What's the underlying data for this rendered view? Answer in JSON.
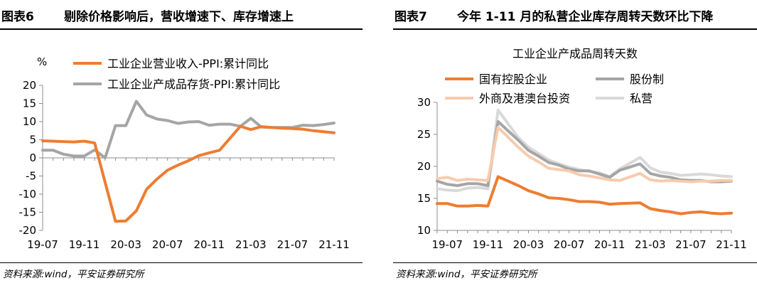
{
  "left_panel": {
    "figure_no": "图表6",
    "title": "剔除价格影响后，营收增速下、库存增速上",
    "source": "资料来源:wind，平安证券研究所"
  },
  "right_panel": {
    "figure_no": "图表7",
    "title": "今年 1-11 月的私营企业库存周转天数环比下降",
    "source": "资料来源:wind，平安证券研究所"
  },
  "chart_data": [
    {
      "type": "line",
      "title": "",
      "ylabel": "%",
      "ylim": [
        -20,
        20
      ],
      "yticks": [
        20,
        15,
        10,
        5,
        0,
        -5,
        -10,
        -15,
        -20
      ],
      "xtick_labels": [
        "19-07",
        "19-11",
        "20-03",
        "20-07",
        "20-11",
        "21-03",
        "21-07",
        "21-11"
      ],
      "x": [
        "19-07",
        "19-08",
        "19-09",
        "19-10",
        "19-11",
        "19-12",
        "20-01",
        "20-02",
        "20-03",
        "20-04",
        "20-05",
        "20-06",
        "20-07",
        "20-08",
        "20-09",
        "20-10",
        "20-11",
        "20-12",
        "21-01",
        "21-02",
        "21-03",
        "21-04",
        "21-05",
        "21-06",
        "21-07",
        "21-08",
        "21-09",
        "21-10",
        "21-11"
      ],
      "legend_position": "top",
      "series": [
        {
          "name": "工业企业营业收入-PPI:累计同比",
          "color": "#ed7d31",
          "values": [
            4.7,
            null,
            4.5,
            4.4,
            4.6,
            4.1,
            null,
            -17.5,
            -17.4,
            -14.6,
            -8.6,
            -5.8,
            -3.4,
            -2.0,
            -0.8,
            0.6,
            1.4,
            2.1,
            null,
            8.7,
            7.8,
            8.6,
            8.4,
            8.2,
            8.1,
            7.9,
            7.5,
            7.2,
            6.9
          ]
        },
        {
          "name": "工业企业产成品存货-PPI:累计同比",
          "color": "#a5a5a5",
          "values": [
            2.1,
            2.1,
            1.0,
            0.5,
            0.5,
            2.2,
            0.0,
            8.9,
            8.9,
            15.6,
            11.8,
            10.7,
            10.3,
            9.5,
            9.9,
            10.0,
            9.0,
            9.3,
            9.3,
            8.7,
            10.9,
            8.5,
            8.4,
            8.4,
            8.4,
            9.0,
            8.9,
            9.2,
            9.6
          ]
        }
      ]
    },
    {
      "type": "line",
      "title": "工业企业产成品周转天数",
      "ylim": [
        10,
        30
      ],
      "yticks": [
        30,
        25,
        20,
        15,
        10
      ],
      "xtick_labels": [
        "19-07",
        "19-11",
        "20-03",
        "20-07",
        "20-11",
        "21-03",
        "21-07",
        "21-11"
      ],
      "x": [
        "19-06",
        "19-07",
        "19-08",
        "19-09",
        "19-10",
        "19-11",
        "19-12",
        "20-02",
        "20-03",
        "20-04",
        "20-05",
        "20-06",
        "20-07",
        "20-08",
        "20-09",
        "20-10",
        "20-11",
        "20-12",
        "21-02",
        "21-03",
        "21-04",
        "21-05",
        "21-06",
        "21-07",
        "21-08",
        "21-09",
        "21-10",
        "21-11"
      ],
      "legend_position": "top",
      "series": [
        {
          "name": "国有控股企业",
          "color": "#ed7d31",
          "values": [
            14.2,
            14.2,
            13.8,
            13.8,
            13.9,
            13.8,
            18.4,
            17.0,
            16.2,
            15.7,
            15.1,
            15.0,
            14.8,
            14.5,
            14.5,
            14.4,
            14.1,
            14.2,
            14.3,
            13.4,
            13.1,
            12.9,
            12.6,
            12.8,
            12.9,
            12.7,
            12.6,
            12.7
          ]
        },
        {
          "name": "股份制",
          "color": "#a5a5a5",
          "values": [
            17.7,
            17.2,
            17.0,
            17.3,
            17.3,
            17.0,
            27.0,
            24.1,
            22.5,
            21.6,
            20.6,
            20.2,
            19.6,
            19.3,
            19.3,
            18.8,
            18.3,
            19.4,
            20.4,
            18.9,
            18.5,
            18.3,
            17.9,
            17.8,
            17.8,
            17.6,
            17.6,
            17.7
          ]
        },
        {
          "name": "外商及港澳台投资",
          "color": "#f8cbad",
          "values": [
            18.1,
            18.3,
            17.8,
            18.0,
            17.9,
            17.8,
            26.1,
            23.0,
            21.6,
            20.7,
            19.7,
            19.5,
            19.3,
            18.7,
            18.5,
            18.2,
            17.9,
            17.8,
            18.9,
            17.9,
            17.7,
            17.8,
            17.7,
            17.6,
            17.7,
            17.7,
            17.8,
            17.8
          ]
        },
        {
          "name": "私营",
          "color": "#d9d9d9",
          "values": [
            16.5,
            16.3,
            16.2,
            16.6,
            16.7,
            16.5,
            28.8,
            24.5,
            23.0,
            22.0,
            21.0,
            20.4,
            19.9,
            19.5,
            19.2,
            19.0,
            18.4,
            19.6,
            21.4,
            19.8,
            19.1,
            18.9,
            18.6,
            18.7,
            18.8,
            18.7,
            18.5,
            18.4
          ]
        }
      ]
    }
  ]
}
